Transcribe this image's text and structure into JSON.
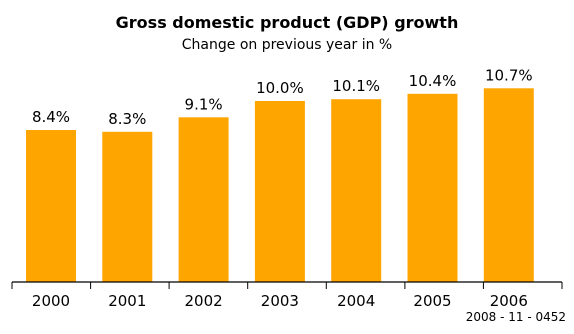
{
  "chart_data": {
    "type": "bar",
    "title": "Gross domestic product (GDP) growth",
    "subtitle": "Change on previous year in %",
    "categories": [
      "2000",
      "2001",
      "2002",
      "2003",
      "2004",
      "2005",
      "2006"
    ],
    "values": [
      8.4,
      8.3,
      9.1,
      10.0,
      10.1,
      10.4,
      10.7
    ],
    "data_labels": [
      "8.4%",
      "8.3%",
      "9.1%",
      "10.0%",
      "10.1%",
      "10.4%",
      "10.7%"
    ],
    "xlabel": "",
    "ylabel": "",
    "ylim": [
      0,
      12
    ],
    "grid": false,
    "colors": {
      "bar": "#FFA500",
      "axis": "#000000"
    }
  },
  "footer": {
    "code": "2008 - 11 - 0452"
  }
}
